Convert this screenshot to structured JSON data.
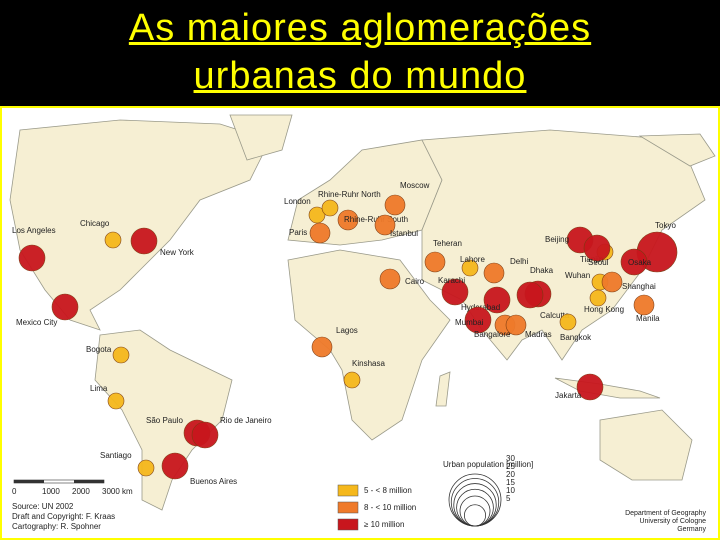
{
  "header": {
    "title_line1": "As maiores aglomerações",
    "title_line2": "urbanas do mundo"
  },
  "cities": [
    {
      "label": "Los Angeles",
      "class": 2
    },
    {
      "label": "Chicago",
      "class": 0
    },
    {
      "label": "New York",
      "class": 2
    },
    {
      "label": "Mexico City",
      "class": 2
    },
    {
      "label": "Bogota",
      "class": 0
    },
    {
      "label": "Lima",
      "class": 0
    },
    {
      "label": "São Paulo",
      "class": 2
    },
    {
      "label": "Rio de Janeiro",
      "class": 2
    },
    {
      "label": "Santiago",
      "class": 0
    },
    {
      "label": "Buenos Aires",
      "class": 2
    },
    {
      "label": "London",
      "class": 0
    },
    {
      "label": "Paris",
      "class": 1
    },
    {
      "label": "Rhine-Ruhr North",
      "class": 0
    },
    {
      "label": "Rhine-Ruhr South",
      "class": 1
    },
    {
      "label": "Moscow",
      "class": 1
    },
    {
      "label": "Istanbul",
      "class": 1
    },
    {
      "label": "Teheran",
      "class": 1
    },
    {
      "label": "Cairo",
      "class": 1
    },
    {
      "label": "Lagos",
      "class": 1
    },
    {
      "label": "Kinshasa",
      "class": 0
    },
    {
      "label": "Karachi",
      "class": 2
    },
    {
      "label": "Lahore",
      "class": 0
    },
    {
      "label": "Delhi",
      "class": 1
    },
    {
      "label": "Dhaka",
      "class": 2
    },
    {
      "label": "Calcutta",
      "class": 2
    },
    {
      "label": "Hyderabad",
      "class": 2
    },
    {
      "label": "Mumbai",
      "class": 2
    },
    {
      "label": "Bangalore",
      "class": 1
    },
    {
      "label": "Madras",
      "class": 1
    },
    {
      "label": "Bangkok",
      "class": 0
    },
    {
      "label": "Beijing",
      "class": 2
    },
    {
      "label": "Tianjin",
      "class": 0
    },
    {
      "label": "Seoul",
      "class": 2
    },
    {
      "label": "Tokyo",
      "class": 2
    },
    {
      "label": "Wuhan",
      "class": 0
    },
    {
      "label": "Osaka",
      "class": 2
    },
    {
      "label": "Shanghai",
      "class": 1
    },
    {
      "label": "Hong Kong",
      "class": 0
    },
    {
      "label": "Manila",
      "class": 1
    },
    {
      "label": "Jakarta",
      "class": 2
    }
  ],
  "legend": {
    "title": "Urban population [million]",
    "classes": [
      {
        "label": "5 - < 8 million",
        "color": "#f5b81c"
      },
      {
        "label": "8 - < 10 million",
        "color": "#ef7a2a"
      },
      {
        "label": "≥ 10 million",
        "color": "#c8161d"
      }
    ],
    "size_circles": [
      30,
      25,
      20,
      15,
      10,
      5
    ]
  },
  "scale": [
    "0",
    "1000",
    "2000",
    "3000 km"
  ],
  "credits": [
    "Source: UN 2002",
    "Draft and Copyright: F. Kraas",
    "Cartography: R. Spohner"
  ],
  "institution": [
    "Department of Geography",
    "University of Cologne",
    "Germany"
  ]
}
